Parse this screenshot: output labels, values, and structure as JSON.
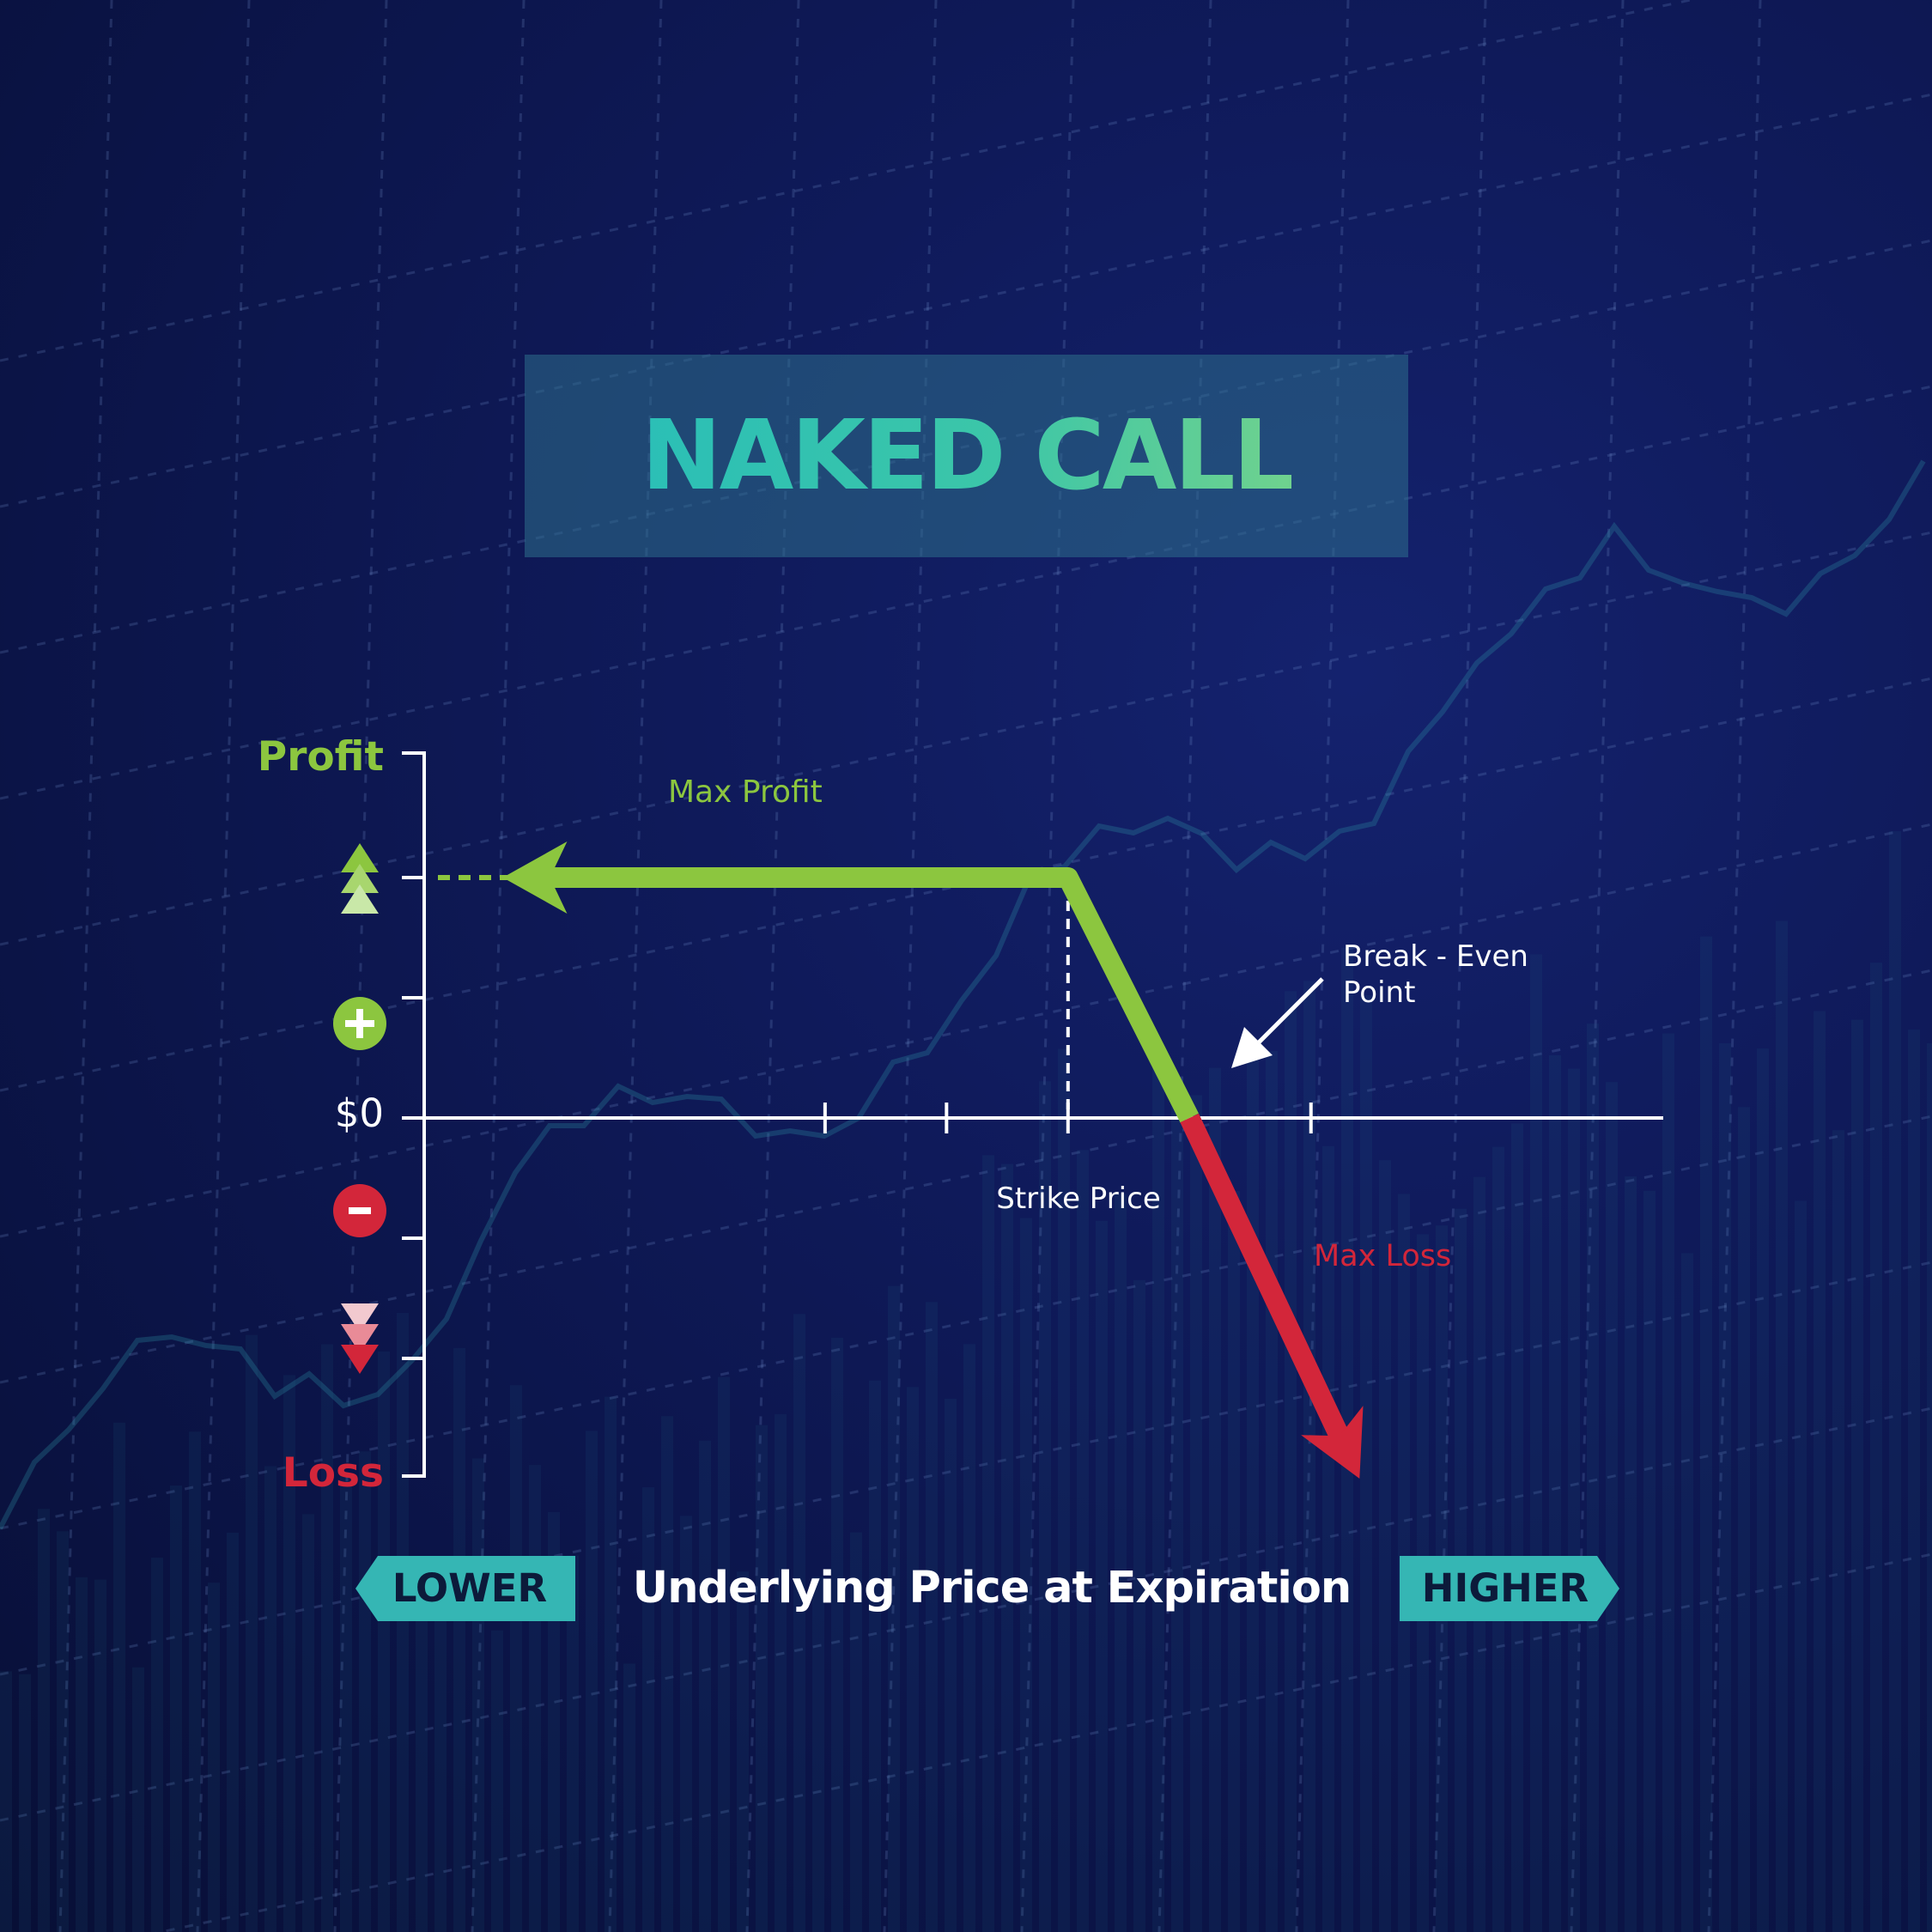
{
  "title": "NAKED CALL",
  "colors": {
    "profit": "#8cc63f",
    "loss": "#d3263a",
    "accent": "#35b6b4",
    "axis": "#ffffff"
  },
  "chart_data": {
    "type": "line",
    "title": "NAKED CALL",
    "xlabel": "Underlying Price at Expiration",
    "ylabel_top": "Profit",
    "ylabel_bottom": "Loss",
    "y_zero_label": "$0",
    "x_direction_labels": [
      "LOWER",
      "HIGHER"
    ],
    "series": [
      {
        "x": [
          1.0,
          5.3
        ],
        "y": [
          2,
          2
        ]
      },
      {
        "x": [
          5.3,
          6.3
        ],
        "y": [
          2,
          0
        ]
      },
      {
        "x": [
          6.3,
          7.7
        ],
        "y": [
          0,
          -3
        ]
      }
    ],
    "strike_x": 5.3,
    "xlim": [
      0,
      10.2
    ],
    "ylim": [
      -3,
      3
    ],
    "x_ticks": [
      3.3,
      4.3,
      5.3,
      7.3
    ],
    "y_ticks": [
      -2,
      -1,
      1,
      2
    ],
    "annotations": {
      "max_profit": "Max Profit",
      "max_loss": "Max Loss",
      "break_even": "Break - Even\nPoint",
      "strike": "Strike Price"
    },
    "legend": "none",
    "grid": false
  }
}
